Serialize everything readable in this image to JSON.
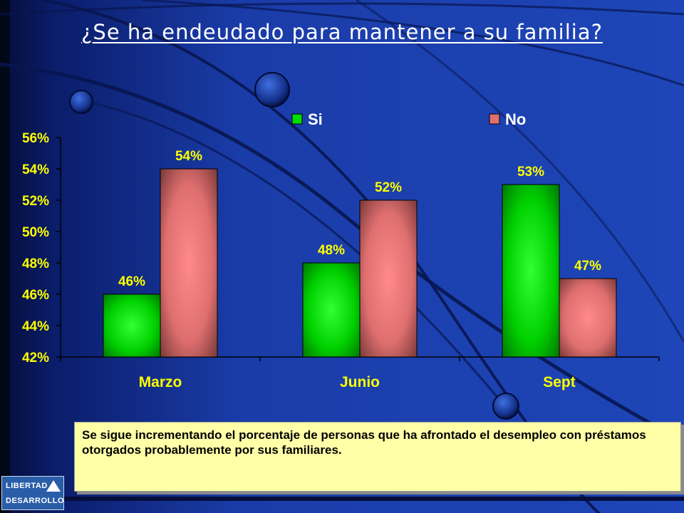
{
  "title": "¿Se ha endeudado para mantener a su familia?",
  "colors": {
    "background": "#1a3ca8",
    "title": "#ffffff",
    "text_yellow": "#ffff00",
    "si_bar": "#00dd00",
    "no_bar": "#e07070",
    "note_background": "#ffffa8"
  },
  "chart_data": {
    "type": "bar",
    "categories": [
      "Marzo",
      "Junio",
      "Sept"
    ],
    "series": [
      {
        "name": "Si",
        "values": [
          46,
          48,
          53
        ],
        "color": "#00dd00",
        "labels": [
          "46%",
          "48%",
          "53%"
        ]
      },
      {
        "name": "No",
        "values": [
          54,
          52,
          47
        ],
        "color": "#e07070",
        "labels": [
          "54%",
          "52%",
          "47%"
        ]
      }
    ],
    "ylim": [
      42,
      56
    ],
    "yticks": [
      42,
      44,
      46,
      48,
      50,
      52,
      54,
      56
    ],
    "ytick_labels": [
      "42%",
      "44%",
      "46%",
      "48%",
      "50%",
      "52%",
      "54%",
      "56%"
    ],
    "legend_position": "top",
    "grid": false
  },
  "note": "Se sigue incrementando el porcentaje de personas que ha afrontado el desempleo con préstamos otorgados probablemente por sus familiares.",
  "logo": {
    "line1": "LIBERTAD",
    "line2": "DESARROLLO"
  }
}
